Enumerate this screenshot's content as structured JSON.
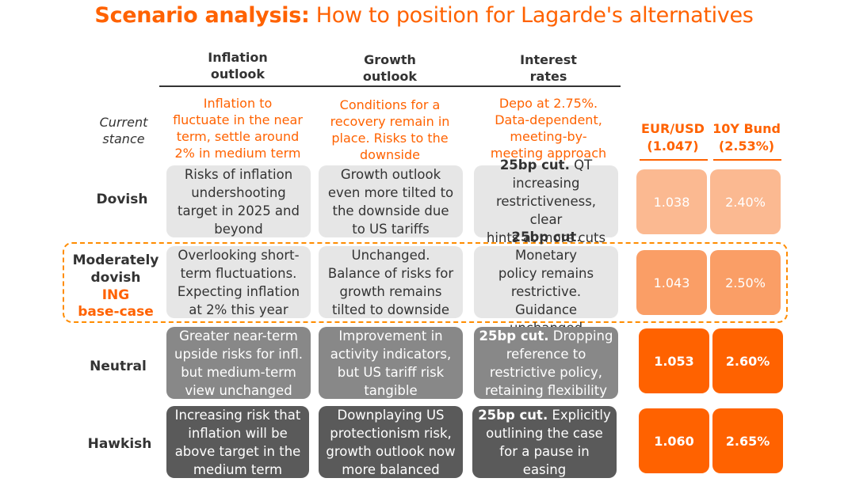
{
  "title": {
    "bold": "Scenario analysis:",
    "rest": "How to position for Lagarde's alternatives"
  },
  "columns": {
    "inflation": "Inflation\noutlook",
    "growth": "Growth\noutlook",
    "rates": "Interest\nrates"
  },
  "current": {
    "label": "Current\nstance",
    "inflation": "Inflation to\nfluctuate in the near\nterm, settle around\n2% in medium term",
    "growth": "Conditions for a\nrecovery remain in\nplace. Risks to the\ndownside",
    "rates": "Depo at 2.75%.\nData-dependent,\nmeeting-by-\nmeeting approach"
  },
  "markets": {
    "eurusd_header": "EUR/USD\n(1.047)",
    "bund_header": "10Y Bund\n(2.53%)"
  },
  "rows": [
    {
      "label": "Dovish",
      "inflation": "Risks of inflation\nundershooting\ntarget in 2025 and\nbeyond",
      "growth": "Growth outlook\neven more tilted to\nthe downside due\nto US tariffs",
      "rates_bold": "25bp cut.",
      "rates_rest": " QT\nincreasing\nrestrictiveness, clear\nhints at more cuts",
      "eurusd": "1.038",
      "bund": "2.40%"
    },
    {
      "label": "Moderately\ndovish",
      "sublabel": "ING\nbase-case",
      "inflation": "Overlooking short-\nterm fluctuations.\nExpecting inflation\nat 2% this year",
      "growth": "Unchanged.\nBalance of risks for\ngrowth remains\ntilted to downside",
      "rates_bold": "25bp cut",
      "rates_rest": ". Monetary\npolicy remains\nrestrictive. Guidance\nunchanged",
      "eurusd": "1.043",
      "bund": "2.50%"
    },
    {
      "label": "Neutral",
      "inflation": "Greater near-term\nupside risks for infl.\nbut medium-term\nview unchanged",
      "growth": "Improvement in\nactivity indicators,\nbut US tariff risk\ntangible",
      "rates_bold": "25bp cut.",
      "rates_rest": " Dropping\nreference to\nrestrictive policy,\nretaining flexibility",
      "eurusd": "1.053",
      "bund": "2.60%"
    },
    {
      "label": "Hawkish",
      "inflation": "Increasing risk that\ninflation will be\nabove target in the\nmedium term",
      "growth": "Downplaying US\nprotectionism risk,\ngrowth outlook now\nmore balanced",
      "rates_bold": "25bp cut.",
      "rates_rest": " Explicitly\noutlining the case\nfor a pause in\neasing",
      "eurusd": "1.060",
      "bund": "2.65%"
    }
  ]
}
